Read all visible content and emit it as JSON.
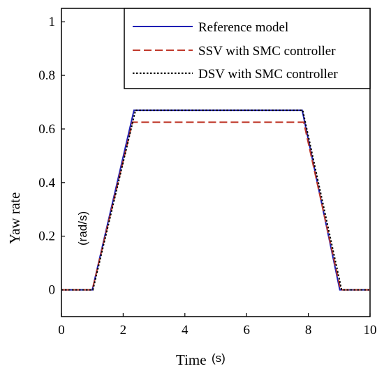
{
  "chart_data": {
    "type": "line",
    "title": "",
    "xlabel": "Time",
    "xlabel_unit": "(s)",
    "ylabel": "Yaw rate",
    "ylabel_unit": "(rad/s)",
    "xlim": [
      0,
      10
    ],
    "ylim": [
      -0.1,
      1.05
    ],
    "xticks": [
      "0",
      "2",
      "4",
      "6",
      "8",
      "10"
    ],
    "yticks": [
      "0",
      "0.2",
      "0.4",
      "0.6",
      "0.8",
      "1"
    ],
    "grid": false,
    "legend_position": "top-right",
    "series": [
      {
        "name": "Reference model",
        "color": "#1f1fb4",
        "style": "solid",
        "x": [
          0,
          1.0,
          2.35,
          7.8,
          9.02,
          10
        ],
        "y": [
          0,
          0,
          0.67,
          0.67,
          0,
          0
        ]
      },
      {
        "name": "SSV with SMC controller",
        "color": "#c0392b",
        "style": "dashed",
        "x": [
          0,
          1.0,
          2.3,
          7.85,
          9.05,
          10
        ],
        "y": [
          0,
          0,
          0.625,
          0.625,
          0,
          0
        ]
      },
      {
        "name": "DSV with SMC controller",
        "color": "#000000",
        "style": "dotted",
        "x": [
          0,
          1.02,
          2.4,
          7.82,
          9.08,
          10
        ],
        "y": [
          0,
          0,
          0.67,
          0.67,
          0,
          0
        ]
      }
    ]
  }
}
